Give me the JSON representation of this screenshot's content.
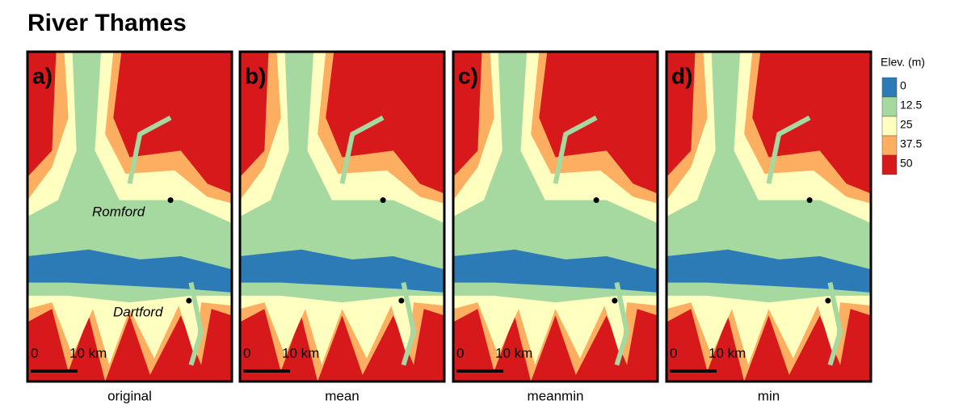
{
  "title": "River Thames",
  "panels": [
    {
      "label": "a)",
      "caption": "original"
    },
    {
      "label": "b)",
      "caption": "mean"
    },
    {
      "label": "c)",
      "caption": "meanmin"
    },
    {
      "label": "d)",
      "caption": "min"
    }
  ],
  "places": [
    "Romford",
    "Dartford"
  ],
  "scale": {
    "start": "0",
    "end": "10 km"
  },
  "legend": {
    "title": "Elev. (m)",
    "ticks": [
      0,
      12.5,
      25,
      37.5,
      50
    ],
    "colors": [
      "#2c7bb6",
      "#a6d99f",
      "#ffffbf",
      "#fdae61",
      "#d7191c"
    ]
  }
}
